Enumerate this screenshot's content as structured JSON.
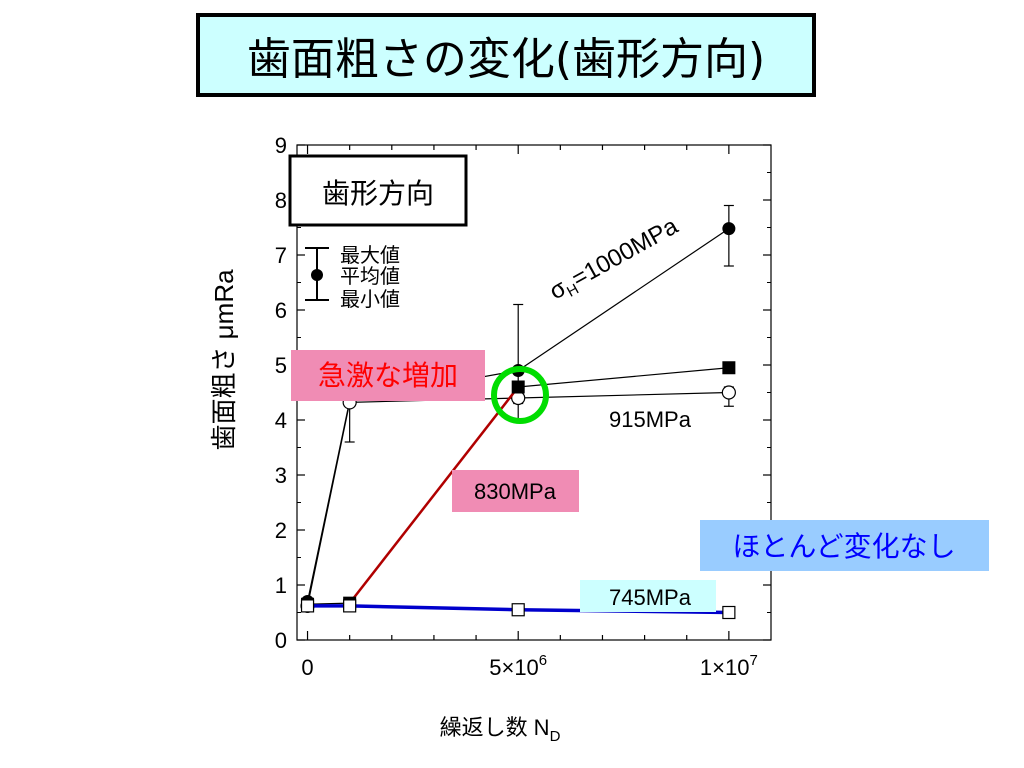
{
  "slide_title": "歯面粗さの変化(歯形方向)",
  "chart_data": {
    "type": "line",
    "xlabel": "繰返し数 N",
    "xlabel_sub": "D",
    "ylabel": "歯面粗さ μmRa",
    "ylim": [
      0,
      9
    ],
    "xlim": [
      -250000,
      11000000
    ],
    "yticks": [
      "0",
      "1",
      "2",
      "3",
      "4",
      "5",
      "6",
      "7",
      "8",
      "9"
    ],
    "xticks": [
      {
        "x": 0,
        "label": "0"
      },
      {
        "x": 5000000,
        "label": "5×10",
        "sup": "6"
      },
      {
        "x": 10000000,
        "label": "1×10",
        "sup": "7"
      }
    ],
    "grid": false,
    "series": [
      {
        "name": "σ H=1000MPa",
        "marker": "filled-circle",
        "color": "#000000",
        "width": 1.2,
        "points": [
          [
            0,
            0.7
          ],
          [
            1000000,
            4.35
          ],
          [
            5000000,
            4.9
          ],
          [
            10000000,
            7.48
          ]
        ],
        "errors": [
          null,
          [
            3.6,
            4.9
          ],
          [
            4.0,
            6.1
          ],
          [
            6.8,
            7.9
          ]
        ]
      },
      {
        "name": "915MPa",
        "marker": "open-circle",
        "color": "#000000",
        "width": 1.2,
        "points": [
          [
            0,
            0.62
          ],
          [
            1000000,
            4.32
          ],
          [
            5000000,
            4.4
          ],
          [
            10000000,
            4.5
          ]
        ],
        "errors": [
          null,
          null,
          [
            4.3,
            4.55
          ],
          [
            4.25,
            4.6
          ]
        ]
      },
      {
        "name": "830MPa",
        "marker": "filled-square",
        "color": "#b00000",
        "width": 2.5,
        "points": [
          [
            0,
            0.65
          ],
          [
            1000000,
            0.67
          ],
          [
            5000000,
            4.6
          ],
          [
            10000000,
            4.95
          ]
        ],
        "errors": [
          null,
          null,
          null,
          null
        ],
        "segment_colors": [
          "#000000",
          "#b00000",
          "#000000"
        ]
      },
      {
        "name": "745MPa",
        "marker": "open-square",
        "color": "#0000cc",
        "width": 3.5,
        "points": [
          [
            0,
            0.62
          ],
          [
            1000000,
            0.62
          ],
          [
            5000000,
            0.55
          ],
          [
            10000000,
            0.5
          ]
        ],
        "errors": [
          null,
          null,
          null,
          null
        ]
      }
    ],
    "annotations": {
      "inset_label": "歯形方向",
      "legend_max": "最大値",
      "legend_avg": "平均値",
      "legend_min": "最小値",
      "sigma_label": "σ",
      "sigma_sub": "H",
      "sigma_value": "=1000MPa",
      "rapid_increase": "急激な増加",
      "no_change": "ほとんど変化なし",
      "label_915": "915MPa",
      "label_830": "830MPa",
      "label_745": "745MPa"
    },
    "colors": {
      "rapid_bg": "#f08cb4",
      "rapid_text": "#ff0000",
      "nochange_bg": "#99ccff",
      "nochange_text": "#0000ff",
      "label830_bg": "#f08cb4",
      "label745_bg": "#ccffff",
      "highlight": "#00dd00"
    }
  }
}
